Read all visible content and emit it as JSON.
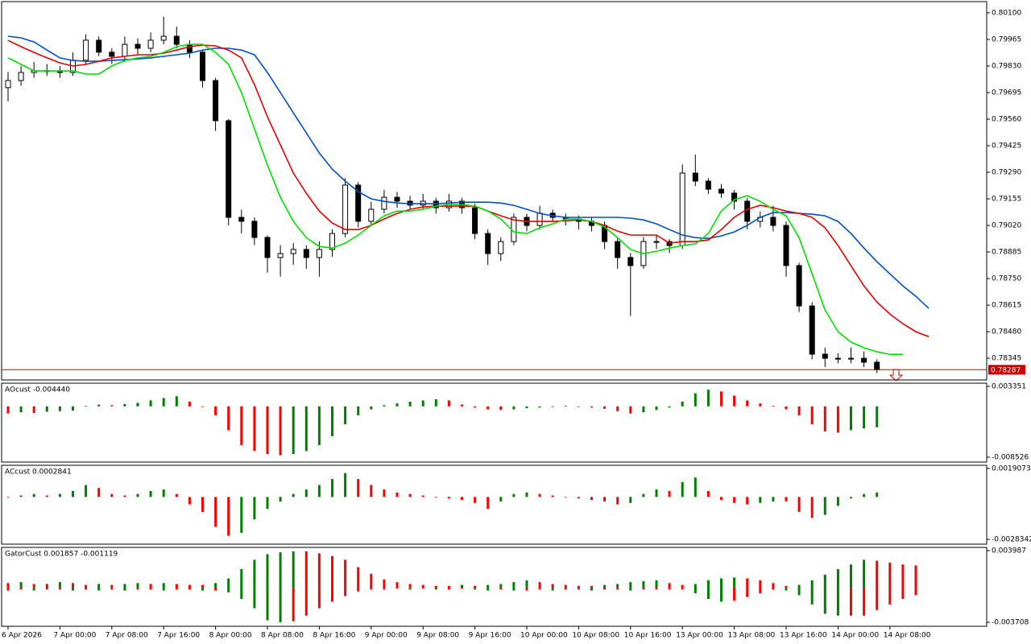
{
  "chart_data": [
    {
      "type": "candlestick",
      "ohlc": [
        [
          0.7972,
          0.798,
          0.7965,
          0.79756
        ],
        [
          0.79756,
          0.7983,
          0.7973,
          0.79797
        ],
        [
          0.79797,
          0.7985,
          0.7977,
          0.79806
        ],
        [
          0.79806,
          0.7984,
          0.7978,
          0.79806
        ],
        [
          0.79806,
          0.7983,
          0.7977,
          0.79797
        ],
        [
          0.79797,
          0.799,
          0.7978,
          0.79859
        ],
        [
          0.79859,
          0.7999,
          0.7984,
          0.79961
        ],
        [
          0.79961,
          0.7998,
          0.7988,
          0.799
        ],
        [
          0.799,
          0.7992,
          0.7984,
          0.79879
        ],
        [
          0.79879,
          0.7998,
          0.7985,
          0.7994
        ],
        [
          0.7994,
          0.7997,
          0.7989,
          0.7992
        ],
        [
          0.7992,
          0.8,
          0.799,
          0.79961
        ],
        [
          0.79961,
          0.8008,
          0.7994,
          0.79981
        ],
        [
          0.79981,
          0.8003,
          0.7992,
          0.7994
        ],
        [
          0.7994,
          0.7996,
          0.7987,
          0.799
        ],
        [
          0.799,
          0.7991,
          0.7972,
          0.79756
        ],
        [
          0.79756,
          0.7977,
          0.795,
          0.79552
        ],
        [
          0.79552,
          0.7956,
          0.7902,
          0.79061
        ],
        [
          0.79061,
          0.791,
          0.7898,
          0.79041
        ],
        [
          0.79041,
          0.7906,
          0.7892,
          0.78959
        ],
        [
          0.78959,
          0.7897,
          0.7878,
          0.78857
        ],
        [
          0.78857,
          0.7892,
          0.7876,
          0.78877
        ],
        [
          0.78877,
          0.7893,
          0.7882,
          0.78898
        ],
        [
          0.78898,
          0.7892,
          0.788,
          0.78857
        ],
        [
          0.78857,
          0.7894,
          0.7876,
          0.78898
        ],
        [
          0.78898,
          0.79,
          0.7886,
          0.78979
        ],
        [
          0.78979,
          0.7926,
          0.7896,
          0.79225
        ],
        [
          0.79225,
          0.7924,
          0.7901,
          0.79041
        ],
        [
          0.79041,
          0.7914,
          0.7902,
          0.79102
        ],
        [
          0.79102,
          0.792,
          0.7908,
          0.79163
        ],
        [
          0.79163,
          0.7919,
          0.7911,
          0.79143
        ],
        [
          0.79143,
          0.7917,
          0.791,
          0.79123
        ],
        [
          0.79123,
          0.7918,
          0.791,
          0.79143
        ],
        [
          0.79143,
          0.7916,
          0.7908,
          0.7911
        ],
        [
          0.7911,
          0.7918,
          0.7909,
          0.79143
        ],
        [
          0.79143,
          0.7916,
          0.7908,
          0.7911
        ],
        [
          0.7911,
          0.7913,
          0.7895,
          0.78979
        ],
        [
          0.78979,
          0.79,
          0.7882,
          0.78877
        ],
        [
          0.78877,
          0.7896,
          0.7884,
          0.78938
        ],
        [
          0.78938,
          0.7908,
          0.7892,
          0.79061
        ],
        [
          0.79061,
          0.7908,
          0.7899,
          0.7902
        ],
        [
          0.7902,
          0.7912,
          0.79,
          0.79082
        ],
        [
          0.79082,
          0.791,
          0.7904,
          0.79061
        ],
        [
          0.79061,
          0.7908,
          0.7902,
          0.79053
        ],
        [
          0.79053,
          0.7907,
          0.79,
          0.79041
        ],
        [
          0.79041,
          0.7906,
          0.7899,
          0.7902
        ],
        [
          0.7902,
          0.7904,
          0.789,
          0.78938
        ],
        [
          0.78938,
          0.7896,
          0.788,
          0.78857
        ],
        [
          0.78857,
          0.7888,
          0.7856,
          0.78816
        ],
        [
          0.78816,
          0.7896,
          0.788,
          0.78938
        ],
        [
          0.78938,
          0.7897,
          0.789,
          0.78938
        ],
        [
          0.78938,
          0.7895,
          0.7888,
          0.78918
        ],
        [
          0.78918,
          0.7933,
          0.789,
          0.79286
        ],
        [
          0.79286,
          0.7938,
          0.7922,
          0.79245
        ],
        [
          0.79245,
          0.7926,
          0.7918,
          0.79204
        ],
        [
          0.79204,
          0.7923,
          0.7916,
          0.79184
        ],
        [
          0.79184,
          0.792,
          0.791,
          0.79143
        ],
        [
          0.79143,
          0.7916,
          0.79,
          0.79041
        ],
        [
          0.79041,
          0.7909,
          0.7901,
          0.79061
        ],
        [
          0.79061,
          0.7912,
          0.7899,
          0.7902
        ],
        [
          0.7902,
          0.7904,
          0.7876,
          0.78816
        ],
        [
          0.78816,
          0.7883,
          0.7858,
          0.78611
        ],
        [
          0.78611,
          0.7863,
          0.7834,
          0.78366
        ],
        [
          0.78366,
          0.784,
          0.783,
          0.78345
        ],
        [
          0.78345,
          0.7837,
          0.7832,
          0.78345
        ],
        [
          0.78345,
          0.784,
          0.7832,
          0.78345
        ],
        [
          0.78345,
          0.7838,
          0.783,
          0.78325
        ],
        [
          0.78325,
          0.7834,
          0.7827,
          0.78287
        ]
      ],
      "moving_averages": [
        {
          "color": "#0050c8",
          "values": [
            0.79981,
            0.79973,
            0.79952,
            0.79911,
            0.79871,
            0.79858,
            0.79854,
            0.79854,
            0.79858,
            0.79862,
            0.79866,
            0.79871,
            0.79879,
            0.79887,
            0.79895,
            0.79911,
            0.7992,
            0.7992,
            0.79911,
            0.79887,
            0.79797,
            0.79695,
            0.79592,
            0.7949,
            0.79388,
            0.79306,
            0.79245,
            0.79192,
            0.79155,
            0.79142,
            0.79134,
            0.7913,
            0.7913,
            0.7913,
            0.79134,
            0.79138,
            0.79138,
            0.79138,
            0.79134,
            0.79122,
            0.79102,
            0.79081,
            0.79069,
            0.79061,
            0.79061,
            0.79061,
            0.79061,
            0.79061,
            0.79057,
            0.79048,
            0.79028,
            0.78999,
            0.78971,
            0.78958,
            0.78954,
            0.78967,
            0.78987,
            0.7902,
            0.79061,
            0.79085,
            0.79085,
            0.79081,
            0.79077,
            0.79069,
            0.7904,
            0.78979,
            0.78905,
            0.78836,
            0.78774,
            0.78713,
            0.7866,
            0.78599
          ]
        },
        {
          "color": "#e80000",
          "values": [
            0.7996,
            0.79928,
            0.79899,
            0.79871,
            0.79846,
            0.7983,
            0.79838,
            0.79854,
            0.79871,
            0.79879,
            0.79887,
            0.79887,
            0.79895,
            0.79911,
            0.79928,
            0.79936,
            0.79932,
            0.79911,
            0.79871,
            0.79736,
            0.79572,
            0.79429,
            0.79286,
            0.79183,
            0.79093,
            0.79032,
            0.78999,
            0.78999,
            0.7902,
            0.79053,
            0.79081,
            0.79102,
            0.79114,
            0.79118,
            0.79118,
            0.79118,
            0.79118,
            0.79093,
            0.79069,
            0.79048,
            0.7904,
            0.7904,
            0.7904,
            0.79044,
            0.79048,
            0.7904,
            0.7902,
            0.78991,
            0.78971,
            0.78971,
            0.78971,
            0.7893,
            0.78938,
            0.78938,
            0.78946,
            0.78999,
            0.79061,
            0.79102,
            0.79122,
            0.7911,
            0.79093,
            0.79081,
            0.79061,
            0.79008,
            0.78918,
            0.78815,
            0.78713,
            0.78631,
            0.7857,
            0.78521,
            0.7848,
            0.78455
          ]
        },
        {
          "color": "#00e000",
          "values": [
            0.79871,
            0.79838,
            0.79805,
            0.79805,
            0.79805,
            0.79805,
            0.79789,
            0.79789,
            0.7983,
            0.79858,
            0.79871,
            0.79879,
            0.79899,
            0.79928,
            0.7994,
            0.7994,
            0.79899,
            0.79838,
            0.79695,
            0.79511,
            0.79327,
            0.79163,
            0.7904,
            0.78958,
            0.78913,
            0.78905,
            0.7893,
            0.78971,
            0.7902,
            0.79069,
            0.79093,
            0.79093,
            0.79102,
            0.79118,
            0.79126,
            0.79126,
            0.79118,
            0.79093,
            0.79053,
            0.78987,
            0.78979,
            0.79008,
            0.79028,
            0.79053,
            0.79053,
            0.7904,
            0.79012,
            0.78958,
            0.78897,
            0.78877,
            0.78889,
            0.78905,
            0.78918,
            0.78926,
            0.78979,
            0.79093,
            0.79151,
            0.79171,
            0.79142,
            0.79102,
            0.79069,
            0.78958,
            0.78774,
            0.7859,
            0.7848,
            0.78427,
            0.78398,
            0.78378,
            0.78365,
            0.78365,
            null,
            null
          ]
        }
      ],
      "up_color": "#ffffff",
      "down_color": "#000000",
      "ylim": [
        0.78235,
        0.80157
      ],
      "yticks": [
        {
          "value": 0.801,
          "label": "0.80100"
        },
        0.79965,
        {
          "value": 0.7983,
          "label": "0.79830"
        },
        0.79695,
        {
          "value": 0.7956,
          "label": "0.79560"
        },
        0.79425,
        {
          "value": 0.7929,
          "label": "0.79290"
        },
        0.79155,
        {
          "value": 0.7902,
          "label": "0.79020"
        },
        0.78885,
        {
          "value": 0.7875,
          "label": "0.78750"
        },
        0.78615,
        {
          "value": 0.7848,
          "label": "0.78480"
        },
        0.78345
      ],
      "current_price": {
        "value": 0.78287,
        "label": "0.78287"
      },
      "x_labels": [
        "6 Apr 2026",
        "7 Apr 00:00",
        "7 Apr 08:00",
        "7 Apr 16:00",
        "8 Apr 00:00",
        "8 Apr 08:00",
        "8 Apr 16:00",
        "9 Apr 00:00",
        "9 Apr 08:00",
        "9 Apr 16:00",
        "10 Apr 00:00",
        "10 Apr 08:00",
        "10 Apr 16:00",
        "13 Apr 00:00",
        "13 Apr 08:00",
        "13 Apr 16:00",
        "14 Apr 00:00",
        "14 Apr 08:00"
      ]
    },
    {
      "type": "bar",
      "title": "AOcust -0.004440",
      "up_color": "#008000",
      "down_color": "#ff0000",
      "values": [
        -0.0012,
        -0.001,
        -0.0011,
        -0.0009,
        -0.0008,
        -0.0007,
        0.0001,
        0.0003,
        0.0002,
        0.0004,
        0.0006,
        0.001,
        0.0014,
        0.0017,
        0.0008,
        0,
        -0.0015,
        -0.004,
        -0.0065,
        -0.0075,
        -0.008,
        -0.0082,
        -0.008,
        -0.0075,
        -0.0065,
        -0.005,
        -0.003,
        -0.0015,
        -0.0005,
        0.0002,
        0.0005,
        0.0008,
        0.001,
        0.0012,
        0.001,
        0.0003,
        -0.0002,
        -0.0005,
        -0.0006,
        -0.0005,
        -0.0003,
        -0.0002,
        0,
        0.0001,
        -0.0001,
        -0.0002,
        -0.0004,
        -0.0008,
        -0.0012,
        -0.001,
        -0.0006,
        -0.0002,
        0.0008,
        0.0022,
        0.0028,
        0.0025,
        0.0018,
        0.001,
        0.0005,
        0.0001,
        -0.0005,
        -0.0015,
        -0.003,
        -0.0042,
        -0.0044,
        -0.004,
        -0.0037,
        -0.0035
      ],
      "ylim": [
        -0.00934,
        0.00389
      ],
      "yticks": [
        0.003351,
        -0.008526
      ]
    },
    {
      "type": "bar",
      "title": "ACcust 0.0002841",
      "up_color": "#008000",
      "down_color": "#ff0000",
      "values": [
        0,
        0.0001,
        0.0002,
        0.0001,
        0.0002,
        0.0004,
        0.0008,
        0.0006,
        0.0002,
        0.0001,
        0.0002,
        0.0004,
        0.0005,
        0.0002,
        -0.0005,
        -0.001,
        -0.002,
        -0.0026,
        -0.0024,
        -0.0015,
        -0.0008,
        -0.0003,
        0.0002,
        0.0005,
        0.0008,
        0.0012,
        0.0016,
        0.0012,
        0.0008,
        0.0005,
        0.0003,
        0.0002,
        0.0001,
        0,
        -0.0001,
        -0.0002,
        -0.0004,
        -0.0008,
        -0.0003,
        0.0002,
        0.0003,
        0.0002,
        0.0001,
        0,
        -0.0001,
        -0.0002,
        -0.0003,
        -0.0005,
        -0.0004,
        0.0002,
        0.0005,
        0.0004,
        0.001,
        0.0013,
        0.0004,
        -0.0002,
        -0.0004,
        -0.0005,
        -0.0004,
        -0.0003,
        -0.0003,
        -0.001,
        -0.0014,
        -0.0012,
        -0.0006,
        -0.0001,
        0.0002,
        0.0003
      ],
      "ylim": [
        -0.00316,
        0.00212
      ],
      "yticks": [
        0.0019073,
        -0.0028342
      ]
    },
    {
      "type": "gator",
      "title": "GatorCust 0.001857 -0.001119",
      "up_color": "#008000",
      "down_color": "#ff0000",
      "series": [
        {
          "values": [
            0.0005,
            0.0006,
            0.0004,
            0.0004,
            0.0006,
            0.0005,
            0.0003,
            0.0004,
            0.0003,
            0.0004,
            0.0005,
            0.0004,
            0.0005,
            0.0004,
            0.0003,
            0.0003,
            0.0005,
            0.001,
            0.002,
            0.003,
            0.0036,
            0.0038,
            0.0039,
            0.0039,
            0.0037,
            0.0034,
            0.003,
            0.0022,
            0.0015,
            0.0009,
            0.0006,
            0.0004,
            0.0003,
            0.0002,
            0.0002,
            0.0003,
            0.0002,
            0.0003,
            0.0004,
            0.0006,
            0.0008,
            0.0006,
            0.0004,
            0.0003,
            0.0002,
            0.0002,
            0.0003,
            0.0004,
            0.0006,
            0.0007,
            0.0008,
            0.0005,
            0.0003,
            0.0004,
            0.0008,
            0.001,
            0.0011,
            0.001,
            0.0008,
            0.0005,
            0.0002,
            0.0003,
            0.0008,
            0.0014,
            0.002,
            0.0025,
            0.003,
            0.0029,
            0.0027,
            0.0025,
            0.0024
          ]
        },
        {
          "values": [
            -0.0003,
            -0.0002,
            -0.0003,
            -0.0002,
            -0.0002,
            -0.0003,
            -0.0002,
            -0.0003,
            -0.0002,
            -0.0003,
            -0.0002,
            -0.0002,
            -0.0003,
            -0.0002,
            -0.0002,
            -0.0003,
            -0.0003,
            -0.0005,
            -0.0012,
            -0.0022,
            -0.0035,
            -0.0037,
            -0.0036,
            -0.003,
            -0.0022,
            -0.0015,
            -0.0009,
            -0.0004,
            -0.0002,
            -0.0002,
            -0.0001,
            -0.0002,
            -0.0001,
            -0.0002,
            -0.0002,
            -0.0001,
            -0.0002,
            -0.0003,
            -0.0002,
            -0.0003,
            -0.0003,
            -0.0002,
            -0.0003,
            -0.0002,
            -0.0002,
            -0.0003,
            -0.0002,
            -0.0002,
            -0.0003,
            -0.0002,
            -0.0002,
            -0.0002,
            -0.0002,
            -0.0006,
            -0.0012,
            -0.0015,
            -0.0014,
            -0.001,
            -0.0006,
            -0.0002,
            -0.0003,
            -0.0008,
            -0.0018,
            -0.0028,
            -0.003,
            -0.003,
            -0.003,
            -0.0024,
            -0.0018,
            -0.0012,
            -0.0008
          ]
        }
      ],
      "ylim": [
        -0.00414,
        0.00433
      ],
      "yticks": [
        0.003987,
        -0.003708
      ]
    }
  ]
}
